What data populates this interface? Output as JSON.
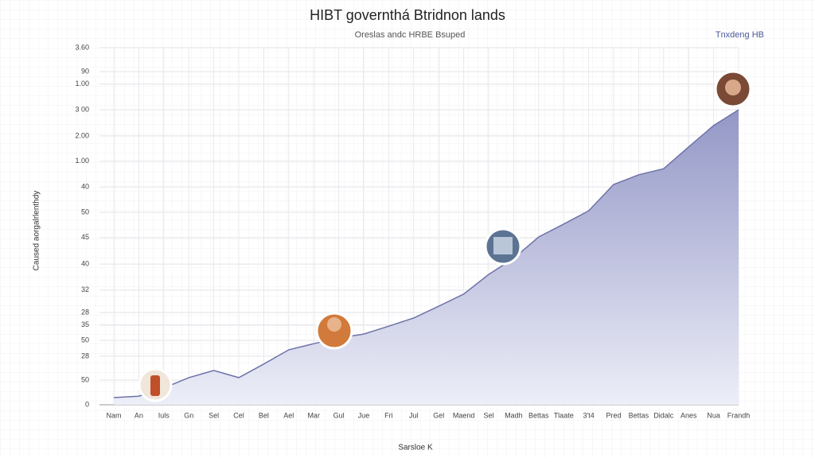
{
  "chart_data": {
    "type": "area",
    "title": "HIBT governthá Btridnon lands",
    "subtitle": "Oreslas andc HRBE Bsuped",
    "legend_label": "Tnxdeng HB",
    "y_label": "Caused aorgalrlenthdy",
    "x_label": "Sarsloe K",
    "categories": [
      "Nam",
      "An",
      "Iuls",
      "Gn",
      "Sel",
      "Cel",
      "Bel",
      "Ael",
      "Mar",
      "Gul",
      "Jue",
      "Fri",
      "Jul",
      "Gel",
      "Maend",
      "Sel",
      "Madh",
      "Bettas",
      "Tlaate",
      "3't4",
      "Pred",
      "Bettas",
      "Didalc",
      "Anes",
      "Nua",
      "Frandh"
    ],
    "series": [
      {
        "name": "Tnxdeng HB",
        "color": "#6f73a8",
        "values": [
          2.0,
          2.4,
          4.7,
          7.6,
          9.6,
          7.6,
          11.4,
          15.4,
          17.1,
          18.7,
          19.8,
          22.0,
          24.3,
          27.6,
          31.0,
          36.5,
          41.0,
          47.0,
          50.6,
          54.3,
          61.7,
          64.4,
          66.1,
          72.2,
          78.2,
          82.6
        ]
      }
    ],
    "ylim": [
      0,
      100
    ],
    "yticks": [
      0,
      {
        "value": 6.9,
        "label": "50"
      },
      {
        "value": 13.6,
        "label": "28"
      },
      {
        "value": 18.0,
        "label": "50"
      },
      {
        "value": 22.3,
        "label": "35"
      },
      {
        "value": 25.8,
        "label": "28"
      },
      {
        "value": 32.1,
        "label": "32"
      },
      {
        "value": 39.4,
        "label": "40"
      },
      {
        "value": 46.8,
        "label": "45"
      },
      {
        "value": 53.9,
        "label": "50"
      },
      {
        "value": 61.0,
        "label": "40"
      },
      {
        "value": 68.2,
        "label": "1.00"
      },
      {
        "value": 75.3,
        "label": "2.00"
      },
      {
        "value": 82.6,
        "label": "3 00"
      },
      {
        "value": 89.8,
        "label": "1.00"
      },
      {
        "value": 93.3,
        "label": "90"
      },
      {
        "value": 100,
        "label": "3.60"
      }
    ],
    "grid": true
  }
}
